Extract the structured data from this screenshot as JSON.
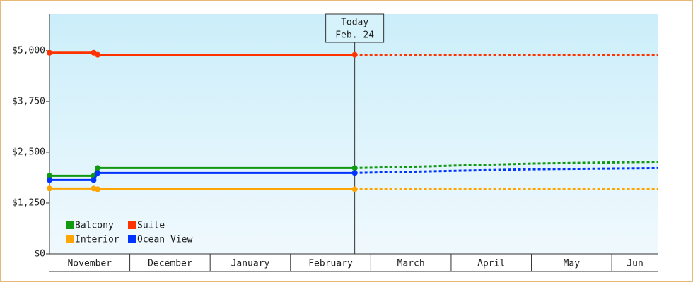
{
  "chart_data": {
    "type": "line",
    "categories": [
      "November",
      "December",
      "January",
      "February",
      "March",
      "April",
      "May",
      "Jun"
    ],
    "x": [
      0,
      0.55,
      0.6,
      3.8,
      4.5,
      5.2,
      6,
      7.58
    ],
    "xlim": [
      0,
      7.58
    ],
    "ylim": [
      0,
      5900
    ],
    "yticks": [
      {
        "value": 0,
        "label": "$0"
      },
      {
        "value": 1250,
        "label": "$1,250"
      },
      {
        "value": 2500,
        "label": "$2,500"
      },
      {
        "value": 3750,
        "label": "$3,750"
      },
      {
        "value": 5000,
        "label": "$5,000"
      }
    ],
    "today": {
      "x": 3.8,
      "label": "Today",
      "date": "Feb. 24"
    },
    "series": [
      {
        "name": "Balcony",
        "color": "#119911",
        "values": [
          1920,
          1920,
          2110,
          2110,
          null,
          null,
          null,
          null
        ],
        "forecast": [
          null,
          null,
          null,
          2110,
          2140,
          2180,
          2220,
          2265
        ]
      },
      {
        "name": "Suite",
        "color": "#ff3300",
        "values": [
          4950,
          4950,
          4900,
          4900,
          null,
          null,
          null,
          null
        ],
        "forecast": [
          null,
          null,
          null,
          4900,
          4900,
          4900,
          4900,
          4900
        ]
      },
      {
        "name": "Interior",
        "color": "#ffa500",
        "values": [
          1608,
          1608,
          1590,
          1590,
          null,
          null,
          null,
          null
        ],
        "forecast": [
          null,
          null,
          null,
          1590,
          1590,
          1590,
          1590,
          1590
        ]
      },
      {
        "name": "Ocean View",
        "color": "#0033ff",
        "values": [
          1815,
          1815,
          1990,
          1990,
          null,
          null,
          null,
          null
        ],
        "forecast": [
          null,
          null,
          null,
          1990,
          2020,
          2050,
          2080,
          2110
        ]
      }
    ]
  }
}
